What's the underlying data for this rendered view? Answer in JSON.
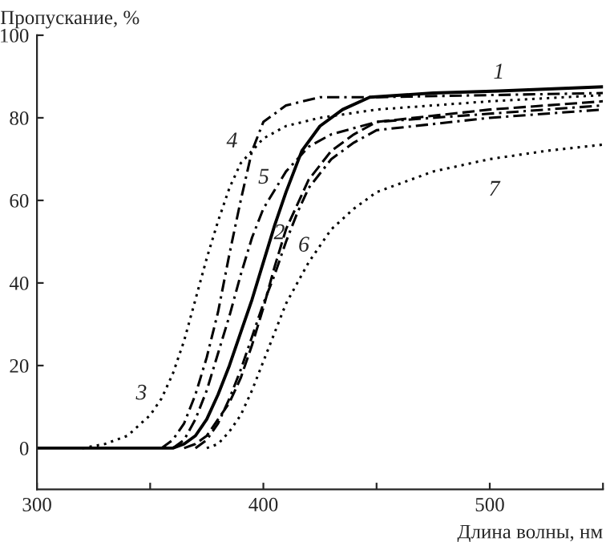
{
  "chart_data": {
    "type": "line",
    "xlabel": "Длина волны, нм",
    "ylabel": "Пропускание, %",
    "xlim": [
      300,
      550
    ],
    "ylim": [
      -10,
      100
    ],
    "xticks": [
      300,
      {
        "value": 350,
        "label": null
      },
      400,
      {
        "value": 450,
        "label": null
      },
      500,
      {
        "value": 550,
        "label": null
      }
    ],
    "yticks": [
      0,
      20,
      40,
      60,
      80,
      100
    ],
    "grid": false,
    "legend": false,
    "marker": "none",
    "series": [
      {
        "name": "1",
        "color": "#000000",
        "line_style": "solid",
        "x": [
          300,
          360,
          365,
          370,
          375,
          380,
          385,
          390,
          395,
          400,
          405,
          410,
          417,
          425,
          435,
          447,
          475,
          504,
          550
        ],
        "values": [
          0,
          0,
          1,
          3,
          7,
          13,
          20,
          28,
          36,
          45,
          54,
          62,
          72,
          78,
          82,
          85,
          86,
          86.5,
          87.5
        ]
      },
      {
        "name": "2",
        "color": "#000000",
        "line_style": "dashed",
        "x": [
          365,
          370,
          375,
          380,
          385,
          390,
          395,
          400,
          405,
          410,
          420,
          430,
          440,
          450,
          500,
          550
        ],
        "values": [
          0,
          1,
          3,
          7,
          11,
          17,
          25,
          34,
          44,
          53,
          65,
          72,
          76,
          79,
          82,
          84
        ]
      },
      {
        "name": "3",
        "color": "#000000",
        "line_style": "dotted",
        "x": [
          320,
          330,
          340,
          350,
          355,
          360,
          365,
          370,
          375,
          380,
          385,
          390,
          400,
          410,
          425,
          450,
          500,
          550
        ],
        "values": [
          0,
          1,
          3,
          8,
          12,
          18,
          26,
          36,
          46,
          55,
          63,
          69,
          75,
          78,
          80,
          82,
          84,
          85.5
        ]
      },
      {
        "name": "4",
        "color": "#000000",
        "line_style": "dashdot",
        "x": [
          355,
          360,
          365,
          370,
          375,
          380,
          385,
          390,
          395,
          400,
          410,
          425,
          450,
          500,
          550
        ],
        "values": [
          0,
          2,
          6,
          13,
          22,
          33,
          47,
          60,
          72,
          79,
          83,
          85,
          85,
          85.5,
          86
        ]
      },
      {
        "name": "5",
        "color": "#000000",
        "line_style": "dashdot",
        "x": [
          360,
          365,
          370,
          375,
          380,
          385,
          390,
          395,
          400,
          410,
          420,
          430,
          450,
          500,
          550
        ],
        "values": [
          0,
          2,
          7,
          14,
          23,
          32,
          42,
          51,
          58,
          67,
          73,
          76,
          79,
          81,
          83
        ]
      },
      {
        "name": "6",
        "color": "#000000",
        "line_style": "dashdot",
        "x": [
          370,
          375,
          380,
          385,
          390,
          395,
          400,
          405,
          410,
          415,
          420,
          430,
          440,
          450,
          500,
          550
        ],
        "values": [
          0,
          2,
          6,
          12,
          19,
          27,
          35,
          42,
          50,
          57,
          63,
          70,
          74,
          77,
          80,
          82
        ]
      },
      {
        "name": "7",
        "color": "#000000",
        "line_style": "dotted",
        "x": [
          375,
          380,
          385,
          390,
          395,
          400,
          405,
          410,
          420,
          430,
          440,
          450,
          475,
          500,
          525,
          550
        ],
        "values": [
          0,
          1,
          4,
          8,
          14,
          21,
          28,
          35,
          45,
          53,
          58,
          62,
          67,
          70,
          72,
          73.5
        ]
      }
    ]
  }
}
